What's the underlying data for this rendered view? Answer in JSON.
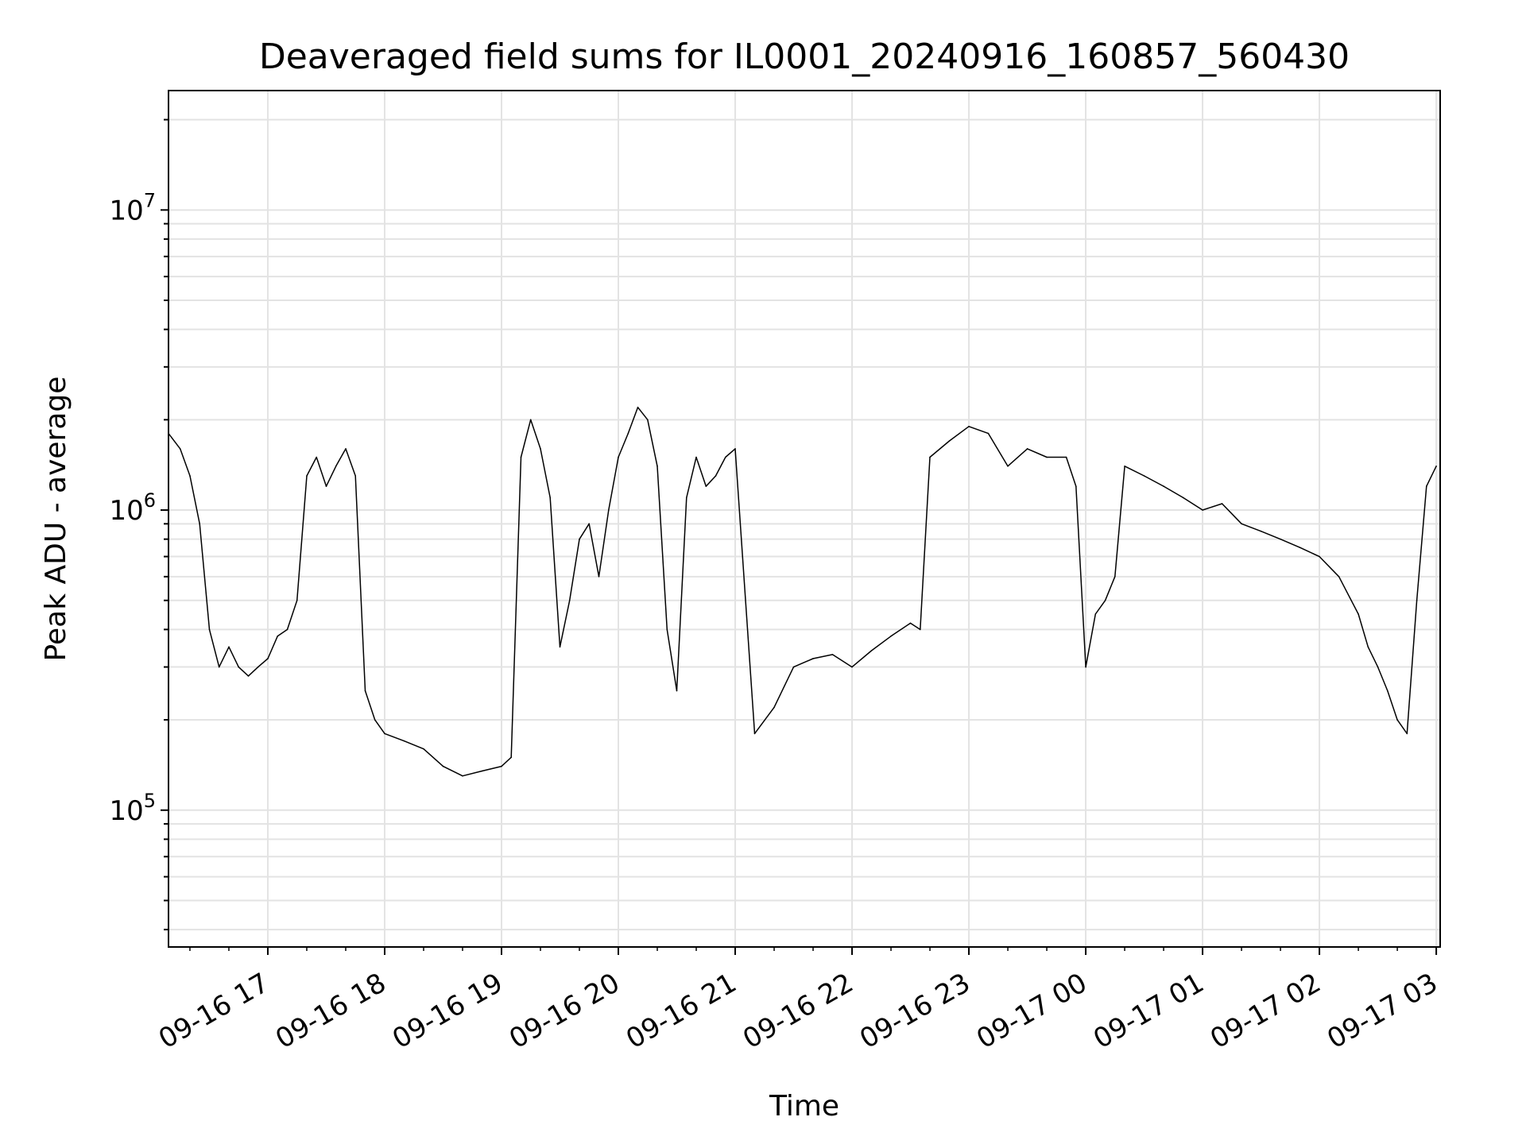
{
  "chart_data": {
    "type": "line",
    "title": "Deaveraged field sums for IL0001_20240916_160857_560430",
    "xlabel": "Time",
    "ylabel": "Peak ADU - average",
    "yscale": "log",
    "ylim": [
      35000,
      25000000
    ],
    "xlim": [
      "2024-09-16 16:09",
      "2024-09-17 03:02"
    ],
    "grid": true,
    "x_ticks": [
      "09-16 17",
      "09-16 18",
      "09-16 19",
      "09-16 20",
      "09-16 21",
      "09-16 22",
      "09-16 23",
      "09-17 00",
      "09-17 01",
      "09-17 02",
      "09-17 03"
    ],
    "y_ticks": [
      {
        "base": "10",
        "exp": "5",
        "value": 100000
      },
      {
        "base": "10",
        "exp": "6",
        "value": 1000000
      },
      {
        "base": "10",
        "exp": "7",
        "value": 10000000
      }
    ],
    "series": [
      {
        "color": "#000000",
        "x": [
          "2024-09-16 16:09",
          "2024-09-16 16:15",
          "2024-09-16 16:20",
          "2024-09-16 16:25",
          "2024-09-16 16:30",
          "2024-09-16 16:35",
          "2024-09-16 16:40",
          "2024-09-16 16:45",
          "2024-09-16 16:50",
          "2024-09-16 16:55",
          "2024-09-16 17:00",
          "2024-09-16 17:05",
          "2024-09-16 17:10",
          "2024-09-16 17:15",
          "2024-09-16 17:20",
          "2024-09-16 17:25",
          "2024-09-16 17:30",
          "2024-09-16 17:35",
          "2024-09-16 17:40",
          "2024-09-16 17:45",
          "2024-09-16 17:50",
          "2024-09-16 17:55",
          "2024-09-16 18:00",
          "2024-09-16 18:10",
          "2024-09-16 18:20",
          "2024-09-16 18:30",
          "2024-09-16 18:40",
          "2024-09-16 18:50",
          "2024-09-16 19:00",
          "2024-09-16 19:05",
          "2024-09-16 19:10",
          "2024-09-16 19:15",
          "2024-09-16 19:20",
          "2024-09-16 19:25",
          "2024-09-16 19:30",
          "2024-09-16 19:35",
          "2024-09-16 19:40",
          "2024-09-16 19:45",
          "2024-09-16 19:50",
          "2024-09-16 19:55",
          "2024-09-16 20:00",
          "2024-09-16 20:05",
          "2024-09-16 20:10",
          "2024-09-16 20:15",
          "2024-09-16 20:20",
          "2024-09-16 20:25",
          "2024-09-16 20:30",
          "2024-09-16 20:35",
          "2024-09-16 20:40",
          "2024-09-16 20:45",
          "2024-09-16 20:50",
          "2024-09-16 20:55",
          "2024-09-16 21:00",
          "2024-09-16 21:10",
          "2024-09-16 21:20",
          "2024-09-16 21:30",
          "2024-09-16 21:40",
          "2024-09-16 21:50",
          "2024-09-16 22:00",
          "2024-09-16 22:10",
          "2024-09-16 22:20",
          "2024-09-16 22:30",
          "2024-09-16 22:35",
          "2024-09-16 22:40",
          "2024-09-16 22:50",
          "2024-09-16 23:00",
          "2024-09-16 23:10",
          "2024-09-16 23:20",
          "2024-09-16 23:30",
          "2024-09-16 23:40",
          "2024-09-16 23:50",
          "2024-09-16 23:55",
          "2024-09-17 00:00",
          "2024-09-17 00:05",
          "2024-09-17 00:10",
          "2024-09-17 00:15",
          "2024-09-17 00:20",
          "2024-09-17 00:30",
          "2024-09-17 00:40",
          "2024-09-17 00:50",
          "2024-09-17 01:00",
          "2024-09-17 01:10",
          "2024-09-17 01:20",
          "2024-09-17 01:30",
          "2024-09-17 01:40",
          "2024-09-17 01:50",
          "2024-09-17 02:00",
          "2024-09-17 02:10",
          "2024-09-17 02:20",
          "2024-09-17 02:25",
          "2024-09-17 02:30",
          "2024-09-17 02:35",
          "2024-09-17 02:40",
          "2024-09-17 02:45",
          "2024-09-17 02:50",
          "2024-09-17 02:55",
          "2024-09-17 03:00"
        ],
        "y": [
          1800000,
          1600000,
          1300000,
          900000,
          400000,
          300000,
          350000,
          300000,
          280000,
          300000,
          320000,
          380000,
          400000,
          500000,
          1300000,
          1500000,
          1200000,
          1400000,
          1600000,
          1300000,
          250000,
          200000,
          180000,
          170000,
          160000,
          140000,
          130000,
          135000,
          140000,
          150000,
          1500000,
          2000000,
          1600000,
          1100000,
          350000,
          500000,
          800000,
          900000,
          600000,
          1000000,
          1500000,
          1800000,
          2200000,
          2000000,
          1400000,
          400000,
          250000,
          1100000,
          1500000,
          1200000,
          1300000,
          1500000,
          1600000,
          180000,
          220000,
          300000,
          320000,
          330000,
          300000,
          340000,
          380000,
          420000,
          400000,
          1500000,
          1700000,
          1900000,
          1800000,
          1400000,
          1600000,
          1500000,
          1500000,
          1200000,
          300000,
          450000,
          500000,
          600000,
          1400000,
          1300000,
          1200000,
          1100000,
          1000000,
          1050000,
          900000,
          850000,
          800000,
          750000,
          700000,
          600000,
          450000,
          350000,
          300000,
          250000,
          200000,
          180000,
          500000,
          1200000,
          1400000
        ]
      }
    ]
  }
}
